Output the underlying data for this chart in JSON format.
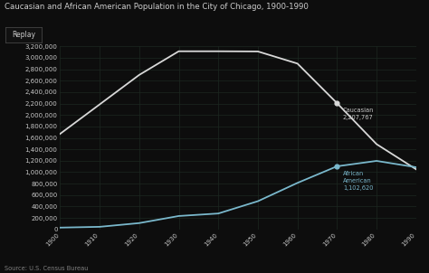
{
  "title": "Caucasian and African American Population in the City of Chicago, 1900-1990",
  "years": [
    1900,
    1910,
    1920,
    1930,
    1940,
    1950,
    1960,
    1970,
    1980,
    1990
  ],
  "caucasian": [
    1670000,
    2185000,
    2701000,
    3115000,
    3115000,
    3112000,
    2900000,
    2207767,
    1490000,
    1050000
  ],
  "african_american": [
    30000,
    44000,
    109000,
    233000,
    277000,
    492000,
    812000,
    1102620,
    1197000,
    1086000
  ],
  "caucasian_label": "Caucasian\n2,207,767",
  "african_american_label": "African\nAmerican\n1,102,620",
  "caucasian_label_year": 1970,
  "african_american_label_year": 1970,
  "caucasian_color": "#d8d8d8",
  "african_american_color": "#7ab8cc",
  "background_color": "#0d0d0d",
  "grid_color": "#1c2820",
  "text_color": "#c8c8c8",
  "title_color": "#cccccc",
  "source_text": "Source: U.S. Census Bureau",
  "replay_label": "Replay",
  "ylim": [
    0,
    3200000
  ],
  "ytick_interval": 200000
}
